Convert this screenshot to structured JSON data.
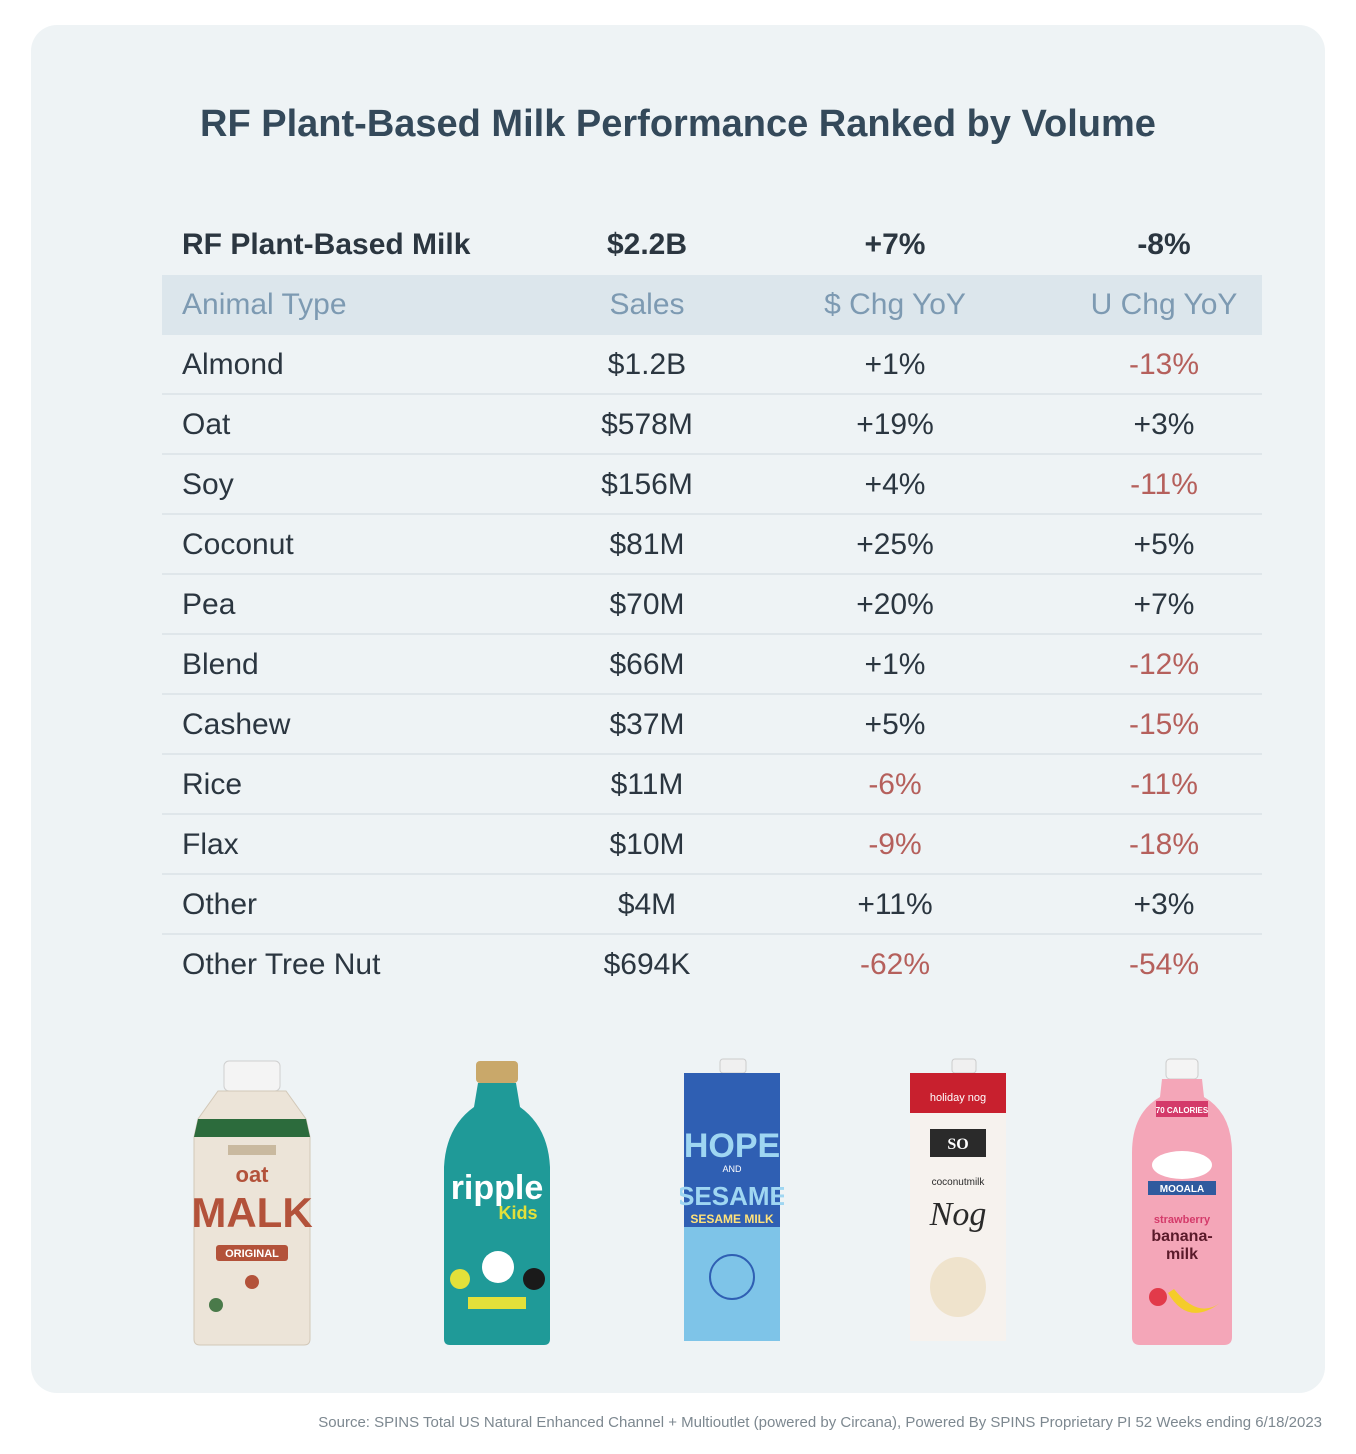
{
  "title": "RF Plant-Based Milk Performance Ranked by Volume",
  "summary": {
    "label": "RF Plant-Based Milk",
    "sales": "$2.2B",
    "dollar_chg": "+7%",
    "unit_chg": "-8%"
  },
  "headers": {
    "type": "Animal Type",
    "sales": "Sales",
    "dollar_chg": "$ Chg YoY",
    "unit_chg": "U Chg YoY"
  },
  "chart_data": {
    "type": "table",
    "columns": [
      "Animal Type",
      "Sales",
      "$ Chg YoY",
      "U Chg YoY"
    ],
    "rows": [
      {
        "type": "Almond",
        "sales": "$1.2B",
        "dollar_chg": "+1%",
        "unit_chg": "-13%"
      },
      {
        "type": "Oat",
        "sales": "$578M",
        "dollar_chg": "+19%",
        "unit_chg": "+3%"
      },
      {
        "type": "Soy",
        "sales": "$156M",
        "dollar_chg": "+4%",
        "unit_chg": "-11%"
      },
      {
        "type": "Coconut",
        "sales": "$81M",
        "dollar_chg": "+25%",
        "unit_chg": "+5%"
      },
      {
        "type": "Pea",
        "sales": "$70M",
        "dollar_chg": "+20%",
        "unit_chg": "+7%"
      },
      {
        "type": "Blend",
        "sales": "$66M",
        "dollar_chg": "+1%",
        "unit_chg": "-12%"
      },
      {
        "type": "Cashew",
        "sales": "$37M",
        "dollar_chg": "+5%",
        "unit_chg": "-15%"
      },
      {
        "type": "Rice",
        "sales": "$11M",
        "dollar_chg": "-6%",
        "unit_chg": "-11%"
      },
      {
        "type": "Flax",
        "sales": "$10M",
        "dollar_chg": "-9%",
        "unit_chg": "-18%"
      },
      {
        "type": "Other",
        "sales": "$4M",
        "dollar_chg": "+11%",
        "unit_chg": "+3%"
      },
      {
        "type": "Other Tree Nut",
        "sales": "$694K",
        "dollar_chg": "-62%",
        "unit_chg": "-54%"
      }
    ]
  },
  "colors": {
    "negative": "#b5605c",
    "header_text": "#7d9ab2",
    "title": "#34495a"
  },
  "products": [
    {
      "name": "oat-malk-bottle",
      "label_top": "oat",
      "label_main": "MALK",
      "label_sub": "ORIGINAL"
    },
    {
      "name": "ripple-kids-bottle",
      "label_main": "ripple",
      "label_sub": "Kids"
    },
    {
      "name": "hope-sesame-carton",
      "label_main": "HOPE",
      "label_and": "AND",
      "label_main2": "SESAME",
      "label_sub": "SESAME MILK"
    },
    {
      "name": "so-delicious-nog-carton",
      "label_top": "holiday nog",
      "label_brand": "SO",
      "label_main": "Nog",
      "label_sub": "coconutmilk"
    },
    {
      "name": "mooala-banana-milk-bottle",
      "label_top": "70 CALORIES",
      "label_brand": "MOOALA",
      "label_main": "banana-",
      "label_main2": "milk",
      "label_sub": "strawberry"
    }
  ],
  "source": "Source: SPINS Total US Natural Enhanced Channel + Multioutlet (powered by Circana), Powered By SPINS Proprietary PI 52 Weeks ending 6/18/2023"
}
